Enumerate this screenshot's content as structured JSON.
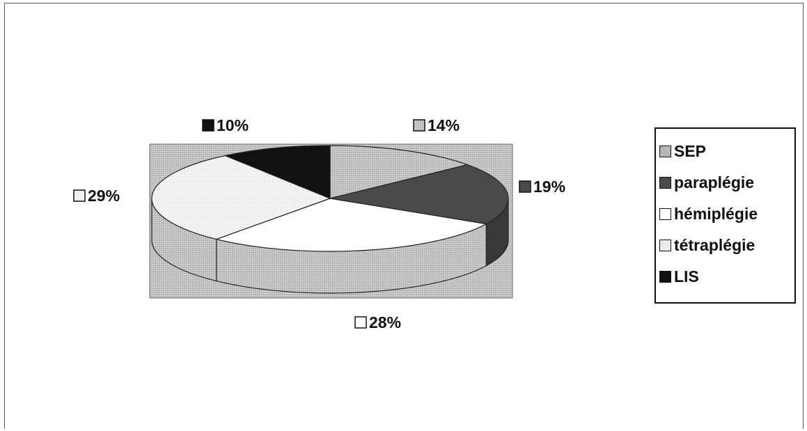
{
  "chart_data": {
    "type": "pie",
    "title": "",
    "slices": [
      {
        "label": "SEP",
        "value": 14,
        "value_label": "14%",
        "color": "#a9a9a9"
      },
      {
        "label": "paraplégie",
        "value": 19,
        "value_label": "19%",
        "color": "#4a4a4a"
      },
      {
        "label": "hémiplégie",
        "value": 28,
        "value_label": "28%",
        "color": "#ffffff"
      },
      {
        "label": "tétraplégie",
        "value": 29,
        "value_label": "29%",
        "color": "#f2f2f2"
      },
      {
        "label": "LIS",
        "value": 10,
        "value_label": "10%",
        "color": "#111111"
      }
    ],
    "legend_position": "right",
    "style": "3d",
    "plot_background": "#c4c4c4"
  }
}
